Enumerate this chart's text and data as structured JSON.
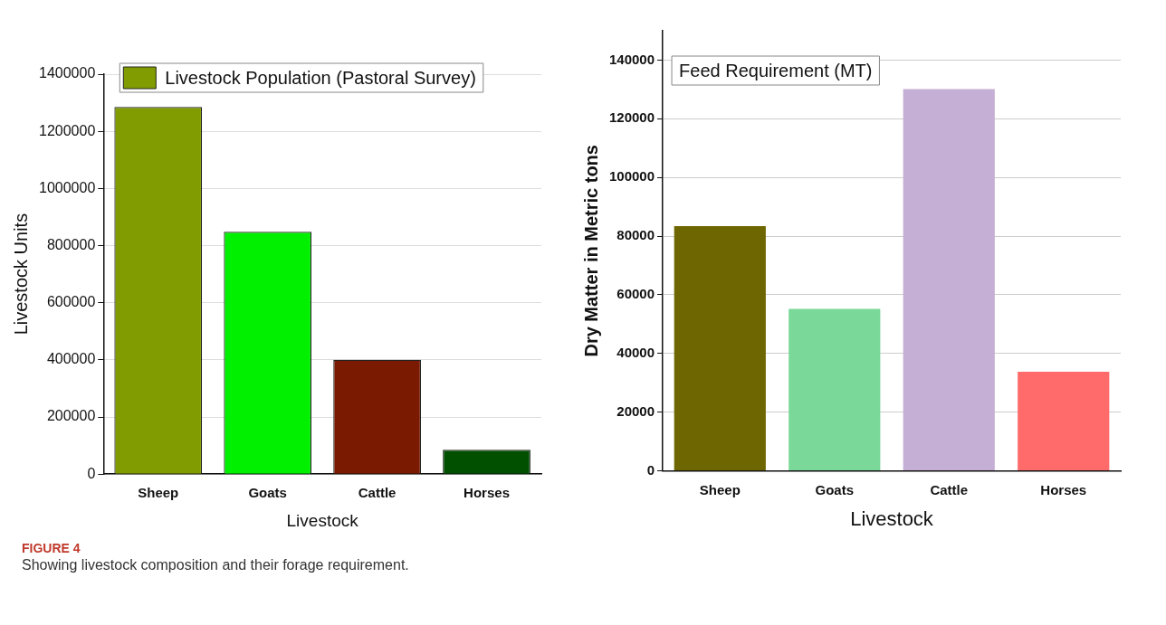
{
  "chart_data": [
    {
      "type": "bar",
      "categories": [
        "Sheep",
        "Goats",
        "Cattle",
        "Horses"
      ],
      "xlabel": "Livestock",
      "ylabel": "Livestock Units",
      "ylim": [
        0,
        1400000
      ],
      "yticks": [
        0,
        200000,
        400000,
        600000,
        800000,
        1000000,
        1200000,
        1400000
      ],
      "grid": "y",
      "legend": "top left",
      "series": [
        {
          "name": "Livestock Population (Pastoral Survey)",
          "colors": [
            "#809c00",
            "#00f000",
            "#7a1a00",
            "#005000"
          ],
          "values": [
            1285000,
            848000,
            400000,
            85000
          ]
        }
      ],
      "annotations": [
        "FIGURE 4",
        "Showing livestock composition and their forage requirement."
      ]
    },
    {
      "type": "bar",
      "categories": [
        "Sheep",
        "Goats",
        "Cattle",
        "Horses"
      ],
      "xlabel": "Livestock",
      "ylabel": "Dry Matter in Metric tons",
      "ylim": [
        0,
        150000
      ],
      "yticks": [
        0,
        20000,
        40000,
        60000,
        80000,
        100000,
        120000,
        140000
      ],
      "grid": "y",
      "legend": "top left",
      "series": [
        {
          "name": "Feed Requirement (MT)",
          "colors": [
            "#6e6600",
            "#7ad898",
            "#c5afd4",
            "#ff6b6b"
          ],
          "values": [
            83400,
            55200,
            130100,
            33800
          ]
        }
      ]
    }
  ]
}
